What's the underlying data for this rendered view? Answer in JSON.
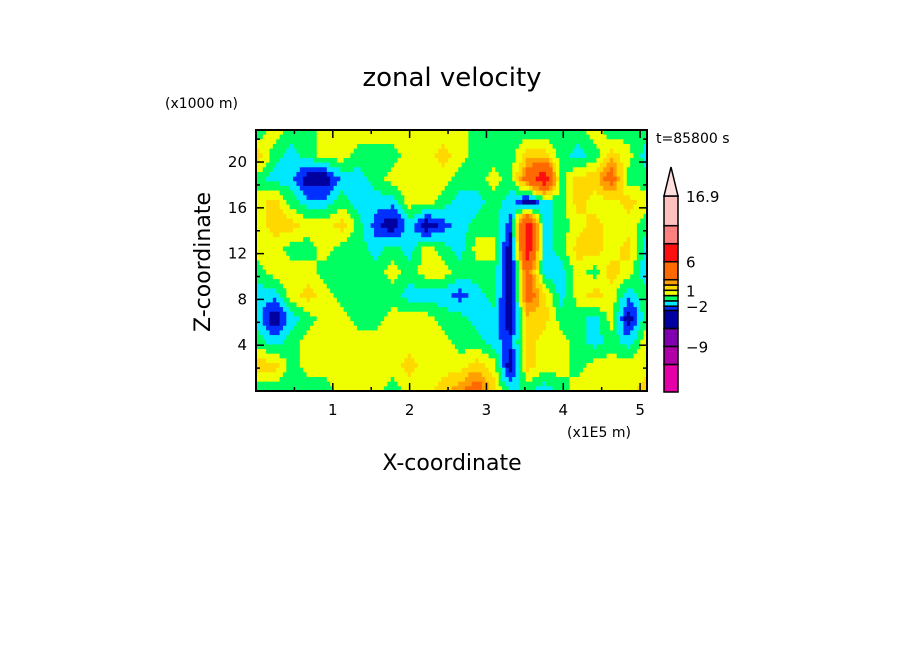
{
  "chart_data": {
    "type": "heatmap",
    "title": "zonal velocity",
    "xlabel": "X-coordinate",
    "ylabel": "Z-coordinate",
    "x_scale_label": "(x1E5 m)",
    "y_scale_label": "(x1000 m)",
    "time_label": "t=85800 s",
    "xlim": [
      0,
      5.09
    ],
    "ylim": [
      0,
      22.8
    ],
    "x_ticks": [
      1,
      2,
      3,
      4,
      5
    ],
    "y_ticks": [
      4,
      8,
      12,
      16,
      20
    ],
    "colorbar": {
      "boundaries": [
        -12,
        -9,
        -6,
        -3,
        -2,
        -1,
        0,
        1,
        2,
        3,
        6,
        10,
        13,
        16.9
      ],
      "colors": [
        "#e600a8",
        "#b000a8",
        "#8000b0",
        "#0000a0",
        "#0030ff",
        "#00e8ff",
        "#00ff60",
        "#f0ff00",
        "#ffd800",
        "#ffa000",
        "#ff6a00",
        "#ff1010",
        "#ff8080",
        "#ffc0c0"
      ],
      "over_color": "#ffe0e0",
      "tick_labels": [
        {
          "value": 16.9,
          "label": "16.9"
        },
        {
          "value": 6,
          "label": "6"
        },
        {
          "value": 1,
          "label": "1"
        },
        {
          "value": -2,
          "label": "−2"
        },
        {
          "value": -9,
          "label": "−9"
        }
      ]
    },
    "grid_note_codes": {
      "Y": 0.5,
      "G": -0.5,
      "C": -1.5,
      "B": -2.5,
      "D": -4,
      "O": 1.5,
      "P": 2.5,
      "R": 4,
      "E": 8
    },
    "grid_rows_top_to_bottom": [
      "GYGGYYYYYYYYYGGGGGGGYGGG",
      "OGCGYYGGGYYOYGGGOOGCGOYC",
      "GCCDDCCGYYYYGGYGREGOORGG",
      "YOGCCGCCCYYGCCGCDCGOYYOY",
      "YOOYYOGBDCDBCGGBECGYOYYG",
      "YYGGYGGCGCYGCYYDECGOOYOC",
      "GYYYGGGGYGYYGGGDRCCYGOYC",
      "CCYOYGGGGCCCBCGDROCYOYCG",
      "CDCGYYGGYYYGGCCDOOGGCYDG",
      "GCGYYYYYYYYYGGCBOYYGCGCY",
      "OOGYYYYYYOYYYOYDOYYGYYYY",
      "GGGGGYYYGYYOPROCGCGYYYYO"
    ]
  }
}
